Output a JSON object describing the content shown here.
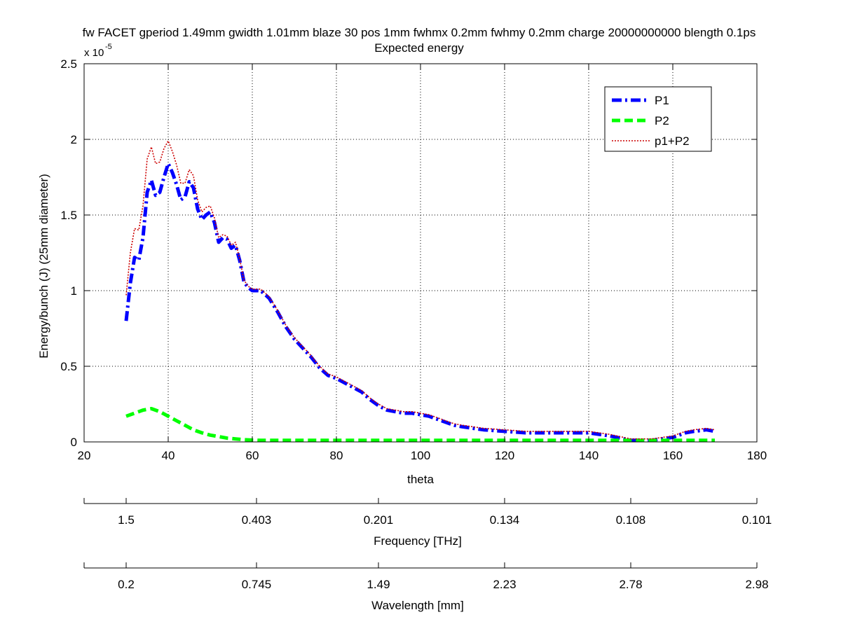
{
  "chart_data": {
    "type": "line",
    "title": "fw FACET gperiod 1.49mm gwidth 1.01mm blaze 30 pos 1mm fwhmx 0.2mm fwhmy 0.2mm charge 20000000000 blength 0.1ps",
    "subtitle": "Expected energy",
    "xlabel": "theta",
    "ylabel": "Energy/bunch (J) (25mm diameter)",
    "y_exponent_label": "x 10",
    "y_exponent": "-5",
    "xlim": [
      20,
      180
    ],
    "ylim": [
      0,
      2.5
    ],
    "xticks": [
      "20",
      "40",
      "60",
      "80",
      "100",
      "120",
      "140",
      "160",
      "180"
    ],
    "yticks": [
      "0",
      "0.5",
      "1",
      "1.5",
      "2",
      "2.5"
    ],
    "grid": true,
    "legend_position": "top-right",
    "series": [
      {
        "name": "P1",
        "color": "#0000ff",
        "style": "dash-dot",
        "x": [
          30,
          31,
          32,
          33,
          34,
          35,
          36,
          37,
          38,
          39,
          40,
          41,
          42,
          43,
          44,
          45,
          46,
          47,
          48,
          49,
          50,
          51,
          52,
          53,
          54,
          55,
          56,
          57,
          58,
          59,
          60,
          62,
          64,
          66,
          68,
          70,
          72,
          74,
          76,
          78,
          80,
          82,
          84,
          86,
          88,
          90,
          92,
          94,
          96,
          98,
          100,
          102,
          104,
          106,
          108,
          110,
          115,
          120,
          125,
          130,
          135,
          140,
          145,
          150,
          155,
          160,
          163,
          165,
          168,
          170
        ],
        "y": [
          0.8,
          1.05,
          1.22,
          1.2,
          1.35,
          1.65,
          1.73,
          1.63,
          1.65,
          1.75,
          1.84,
          1.78,
          1.7,
          1.6,
          1.62,
          1.72,
          1.68,
          1.54,
          1.47,
          1.5,
          1.52,
          1.45,
          1.32,
          1.35,
          1.34,
          1.28,
          1.3,
          1.2,
          1.06,
          1.02,
          1.0,
          1.0,
          0.95,
          0.86,
          0.76,
          0.68,
          0.62,
          0.56,
          0.49,
          0.44,
          0.42,
          0.39,
          0.36,
          0.33,
          0.28,
          0.24,
          0.21,
          0.2,
          0.19,
          0.19,
          0.18,
          0.17,
          0.15,
          0.13,
          0.11,
          0.1,
          0.08,
          0.07,
          0.06,
          0.06,
          0.06,
          0.06,
          0.04,
          0.01,
          0.01,
          0.03,
          0.06,
          0.07,
          0.08,
          0.07
        ]
      },
      {
        "name": "P2",
        "color": "#00ff00",
        "style": "dashed",
        "x": [
          30,
          32,
          34,
          36,
          38,
          40,
          42,
          44,
          46,
          48,
          50,
          52,
          54,
          56,
          58,
          60,
          62,
          70,
          80,
          100,
          120,
          140,
          160,
          170
        ],
        "y": [
          0.17,
          0.19,
          0.21,
          0.22,
          0.2,
          0.17,
          0.14,
          0.11,
          0.08,
          0.06,
          0.045,
          0.035,
          0.025,
          0.02,
          0.015,
          0.012,
          0.01,
          0.01,
          0.01,
          0.01,
          0.01,
          0.01,
          0.01,
          0.01
        ]
      },
      {
        "name": "p1+P2",
        "color": "#cc0000",
        "style": "dotted",
        "x": [
          30,
          31,
          32,
          33,
          34,
          35,
          36,
          37,
          38,
          39,
          40,
          41,
          42,
          43,
          44,
          45,
          46,
          47,
          48,
          49,
          50,
          51,
          52,
          53,
          54,
          55,
          56,
          57,
          58,
          59,
          60,
          62,
          64,
          66,
          68,
          70,
          72,
          74,
          76,
          78,
          80,
          82,
          84,
          86,
          88,
          90,
          92,
          94,
          96,
          98,
          100,
          102,
          104,
          106,
          108,
          110,
          115,
          120,
          125,
          130,
          135,
          140,
          145,
          150,
          155,
          160,
          163,
          165,
          168,
          170
        ],
        "y": [
          0.97,
          1.25,
          1.41,
          1.4,
          1.56,
          1.87,
          1.95,
          1.84,
          1.85,
          1.94,
          1.99,
          1.92,
          1.83,
          1.71,
          1.71,
          1.8,
          1.76,
          1.6,
          1.52,
          1.55,
          1.56,
          1.48,
          1.35,
          1.37,
          1.36,
          1.3,
          1.32,
          1.21,
          1.07,
          1.03,
          1.01,
          1.01,
          0.96,
          0.87,
          0.77,
          0.69,
          0.63,
          0.57,
          0.5,
          0.45,
          0.43,
          0.4,
          0.37,
          0.34,
          0.29,
          0.25,
          0.22,
          0.21,
          0.2,
          0.2,
          0.19,
          0.18,
          0.16,
          0.14,
          0.12,
          0.11,
          0.09,
          0.08,
          0.07,
          0.07,
          0.07,
          0.07,
          0.05,
          0.02,
          0.02,
          0.04,
          0.07,
          0.08,
          0.09,
          0.08
        ]
      }
    ],
    "secondary_axes": [
      {
        "label": "Frequency [THz]",
        "ticks": [
          {
            "theta": 30,
            "label": "1.5"
          },
          {
            "theta": 20,
            "label": ""
          },
          {
            "theta": 61,
            "label": "0.403"
          },
          {
            "theta": 90,
            "label": "0.201"
          },
          {
            "theta": 120,
            "label": "0.134"
          },
          {
            "theta": 150,
            "label": "0.108"
          },
          {
            "theta": 180,
            "label": "0.101"
          }
        ]
      },
      {
        "label": "Wavelength [mm]",
        "ticks": [
          {
            "theta": 30,
            "label": "0.2"
          },
          {
            "theta": 20,
            "label": ""
          },
          {
            "theta": 61,
            "label": "0.745"
          },
          {
            "theta": 90,
            "label": "1.49"
          },
          {
            "theta": 120,
            "label": "2.23"
          },
          {
            "theta": 150,
            "label": "2.78"
          },
          {
            "theta": 180,
            "label": "2.98"
          }
        ]
      }
    ]
  }
}
